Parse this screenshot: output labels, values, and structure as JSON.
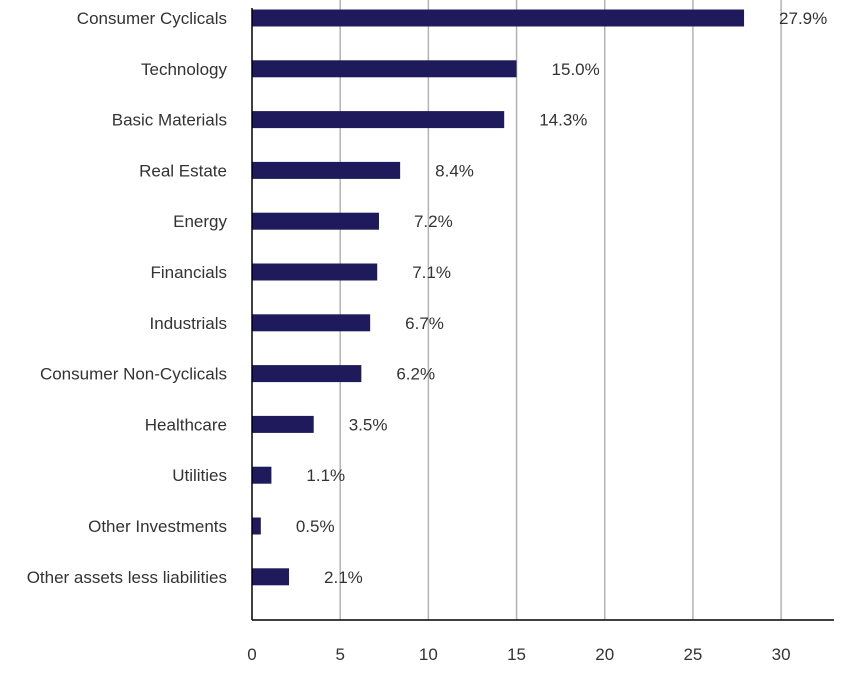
{
  "chart_data": {
    "type": "bar",
    "orientation": "horizontal",
    "categories": [
      "Consumer Cyclicals",
      "Technology",
      "Basic Materials",
      "Real Estate",
      "Energy",
      "Financials",
      "Industrials",
      "Consumer Non-Cyclicals",
      "Healthcare",
      "Utilities",
      "Other Investments",
      "Other assets less liabilities"
    ],
    "values": [
      27.9,
      15.0,
      14.3,
      8.4,
      7.2,
      7.1,
      6.7,
      6.2,
      3.5,
      1.1,
      0.5,
      2.1
    ],
    "data_labels": [
      "27.9%",
      "15.0%",
      "14.3%",
      "8.4%",
      "7.2%",
      "7.1%",
      "6.7%",
      "6.2%",
      "3.5%",
      "1.1%",
      "0.5%",
      "2.1%"
    ],
    "x_ticks": [
      "0",
      "5",
      "10",
      "15",
      "20",
      "25",
      "30"
    ],
    "xlim": [
      0,
      33
    ],
    "grid": "vertical",
    "bar_color": "#1f1a5c",
    "title": "",
    "xlabel": "",
    "ylabel": ""
  }
}
